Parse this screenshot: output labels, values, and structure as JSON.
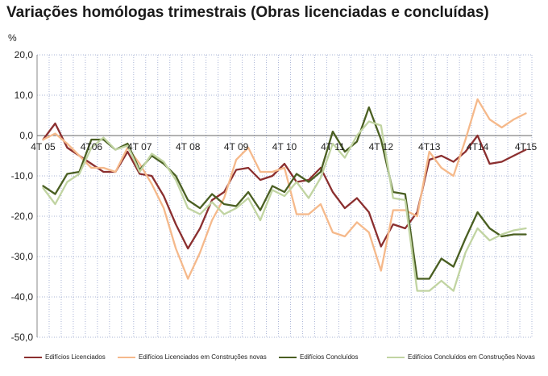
{
  "chart_data": {
    "type": "line",
    "title": "Variações homólogas trimestrais (Obras licenciadas e concluídas)",
    "ylabel": "%",
    "ylim": [
      -50,
      20
    ],
    "y_ticks": [
      "20,0",
      "10,0",
      "0,0",
      "-10,0",
      "-20,0",
      "-30,0",
      "-40,0",
      "-50,0"
    ],
    "y_tick_values": [
      20,
      10,
      0,
      -10,
      -20,
      -30,
      -40,
      -50
    ],
    "x_tick_labels": [
      "4T 05",
      "4T06",
      "4T 07",
      "4T 08",
      "4T 09",
      "4T 10",
      "4T 11",
      "4T 12",
      "4T13",
      "4T14",
      "4T15"
    ],
    "x_tick_index": [
      0,
      4,
      8,
      12,
      16,
      20,
      24,
      28,
      32,
      36,
      40
    ],
    "x_count": 41,
    "grid": true,
    "legend_position": "bottom",
    "series": [
      {
        "name": "Edifícios Licenciados",
        "color": "#8b2f2f",
        "values": [
          -1,
          3,
          -3,
          -5,
          -7,
          -9,
          -9,
          -4,
          -9.5,
          -10,
          -15,
          -22,
          -28,
          -23,
          -16,
          -14,
          -8.5,
          -8,
          -11,
          -10,
          -7,
          -11.5,
          -11,
          -8,
          -14,
          -18,
          -15.5,
          -19,
          -27.5,
          -22,
          -23,
          -19,
          -6,
          -5,
          -6.5,
          -4,
          0,
          -7,
          -6.5,
          -5,
          -3.5
        ]
      },
      {
        "name": "Edifícios Licenciados em Construções novas",
        "color": "#f5b98b",
        "values": [
          -1,
          0.5,
          -2,
          -5,
          -8,
          -8,
          -9,
          -3,
          -7,
          -12,
          -18,
          -28,
          -35.5,
          -29,
          -21,
          -15.5,
          -6,
          -3,
          -9,
          -9,
          -8,
          -19.5,
          -19.5,
          -17,
          -24,
          -25,
          -21.5,
          -24,
          -33.5,
          -18.5,
          -18.5,
          -20,
          -4,
          -8,
          -10,
          -1,
          9,
          4,
          2,
          4,
          5.5
        ]
      },
      {
        "name": "Edifícios Concluídos",
        "color": "#4a5f22",
        "values": [
          -12.5,
          -14.5,
          -9.5,
          -9,
          -1,
          -1,
          -3.5,
          -2,
          -8.5,
          -5,
          -7,
          -10,
          -16,
          -18,
          -14.5,
          -17,
          -17.5,
          -14,
          -18.5,
          -12.5,
          -14,
          -9.5,
          -11.5,
          -9,
          1,
          -4,
          -1.5,
          7,
          -1,
          -14,
          -14.5,
          -35.5,
          -35.5,
          -30.5,
          -32.5,
          -25.5,
          -19,
          -23,
          -25,
          -24.5,
          -24.5
        ]
      },
      {
        "name": "Edifícios Concluídos em Construções Novas",
        "color": "#c1d4a2",
        "values": [
          -13,
          -17,
          -11.5,
          -9.5,
          -3,
          -0.5,
          -3.5,
          -2.5,
          -9,
          -4.5,
          -6.5,
          -11,
          -18,
          -19.5,
          -16.5,
          -19.5,
          -18,
          -15.5,
          -21,
          -13.5,
          -15,
          -11.5,
          -15.5,
          -10.5,
          -2,
          -5.5,
          0,
          3.5,
          2.5,
          -15.5,
          -16,
          -38.5,
          -38.5,
          -36,
          -38.5,
          -29,
          -23,
          -26,
          -24.5,
          -23.5,
          -23
        ]
      }
    ]
  }
}
